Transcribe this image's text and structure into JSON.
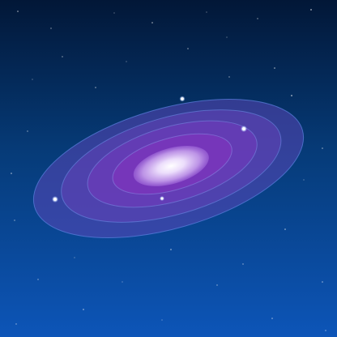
{
  "scene": {
    "subject": "galaxy-icon",
    "colors": {
      "sky_top": "#021737",
      "sky_mid": "#063b78",
      "sky_bottom": "#0d55b8",
      "ring_outer": "#5a47b8",
      "ring_mid": "#6a3fb8",
      "ring_inner": "#7b35bc",
      "ring_stroke": "#5c82e0",
      "core_glow": "#ffffff",
      "core_edge": "#b98ee6",
      "star": "#ffffff",
      "orbit_dot": "#e8f1ff"
    }
  }
}
